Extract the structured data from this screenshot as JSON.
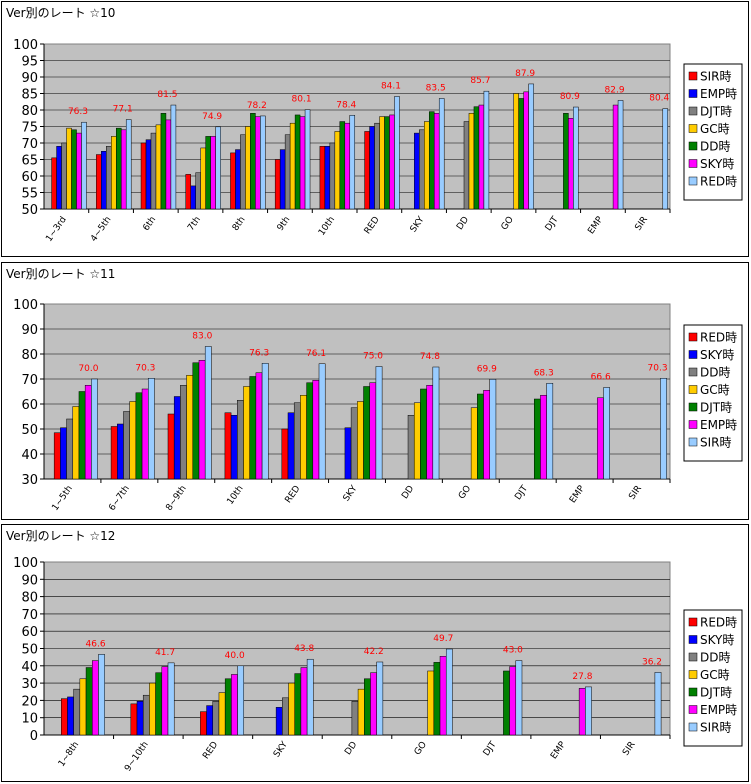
{
  "colors": {
    "plot_bg": "#c0c0c0",
    "label_red": "#ff0000",
    "RED時": "#ff0000",
    "SKY時": "#0000ff",
    "DD時": "#808080",
    "GC時": "#ffcc00",
    "DJT時": "#008000",
    "EMP時": "#ff00ff",
    "SIR時": "#99ccff"
  },
  "chart_data": [
    {
      "type": "bar",
      "title": "Ver別のレート ☆10",
      "ylim": [
        50,
        100
      ],
      "yticks": [
        50,
        55,
        60,
        65,
        70,
        75,
        80,
        85,
        90,
        95,
        100
      ],
      "grid": true,
      "legend_placement": "right",
      "categories": [
        "1~3rd",
        "4~5th",
        "6th",
        "7th",
        "8th",
        "9th",
        "10th",
        "RED",
        "SKY",
        "DD",
        "GO",
        "DJT",
        "EMP",
        "SIR"
      ],
      "series": [
        {
          "name": "SIR時",
          "color_key": "RED時",
          "values": [
            65.5,
            66.5,
            70,
            60.5,
            67,
            65,
            69,
            73.5,
            null,
            null,
            null,
            null,
            null,
            null
          ]
        },
        {
          "name": "EMP時",
          "color_key": "SKY時",
          "values": [
            69,
            67.5,
            71,
            57,
            68,
            68,
            69,
            75,
            73,
            null,
            null,
            null,
            null,
            null
          ]
        },
        {
          "name": "DJT時",
          "color_key": "DD時",
          "values": [
            70,
            69,
            73,
            61,
            72.5,
            72.5,
            70,
            76,
            74,
            76.5,
            null,
            null,
            null,
            null
          ]
        },
        {
          "name": "GC時",
          "color_key": "GC時",
          "values": [
            74.5,
            72,
            75.5,
            68.5,
            75,
            76,
            73.5,
            78,
            76.5,
            79,
            85,
            null,
            null,
            null
          ]
        },
        {
          "name": "DD時",
          "color_key": "DJT時",
          "values": [
            74,
            74.5,
            79,
            72,
            79,
            78.5,
            76.5,
            78,
            79.5,
            81,
            83.5,
            79,
            null,
            null
          ]
        },
        {
          "name": "SKY時",
          "color_key": "EMP時",
          "values": [
            73,
            74,
            77,
            72,
            78,
            78,
            76,
            78.5,
            79,
            81.5,
            85.5,
            77.5,
            81.5,
            null
          ]
        },
        {
          "name": "RED時",
          "color_key": "SIR時",
          "values": [
            76.3,
            77.1,
            81.5,
            74.9,
            78.2,
            80.1,
            78.4,
            84.1,
            83.5,
            85.7,
            87.9,
            80.9,
            82.9,
            80.4
          ]
        }
      ],
      "data_labels": [
        "76.3",
        "77.1",
        "81.5",
        "74.9",
        "78.2",
        "80.1",
        "78.4",
        "84.1",
        "83.5",
        "85.7",
        "87.9",
        "80.9",
        "82.9",
        "80.4"
      ]
    },
    {
      "type": "bar",
      "title": "Ver別のレート ☆11",
      "ylim": [
        30,
        100
      ],
      "yticks": [
        30,
        40,
        50,
        60,
        70,
        80,
        90,
        100
      ],
      "grid": true,
      "legend_placement": "right",
      "categories": [
        "1~5th",
        "6~7th",
        "8~9th",
        "10th",
        "RED",
        "SKY",
        "DD",
        "GO",
        "DJT",
        "EMP",
        "SIR"
      ],
      "series": [
        {
          "name": "RED時",
          "color_key": "RED時",
          "values": [
            48.5,
            51,
            56,
            56.5,
            50,
            null,
            null,
            null,
            null,
            null,
            null
          ]
        },
        {
          "name": "SKY時",
          "color_key": "SKY時",
          "values": [
            50.5,
            52,
            63,
            55.5,
            56.5,
            50.5,
            null,
            null,
            null,
            null,
            null
          ]
        },
        {
          "name": "DD時",
          "color_key": "DD時",
          "values": [
            54,
            57,
            67.5,
            61.5,
            60.5,
            58.5,
            55.5,
            null,
            null,
            null,
            null
          ]
        },
        {
          "name": "GC時",
          "color_key": "GC時",
          "values": [
            59,
            61,
            71.5,
            67,
            63.5,
            61,
            60.5,
            58.5,
            null,
            null,
            null
          ]
        },
        {
          "name": "DJT時",
          "color_key": "DJT時",
          "values": [
            65,
            64.5,
            76.5,
            71,
            68.5,
            67,
            66,
            64,
            62,
            null,
            null
          ]
        },
        {
          "name": "EMP時",
          "color_key": "EMP時",
          "values": [
            67.5,
            66,
            77.5,
            72.5,
            69.5,
            68.5,
            67.5,
            65.5,
            63.5,
            62.5,
            null
          ]
        },
        {
          "name": "SIR時",
          "color_key": "SIR時",
          "values": [
            70.0,
            70.3,
            83.0,
            76.3,
            76.1,
            75.0,
            74.8,
            69.9,
            68.3,
            66.6,
            70.3
          ]
        }
      ],
      "data_labels": [
        "70.0",
        "70.3",
        "83.0",
        "76.3",
        "76.1",
        "75.0",
        "74.8",
        "69.9",
        "68.3",
        "66.6",
        "70.3"
      ]
    },
    {
      "type": "bar",
      "title": "Ver別のレート ☆12",
      "ylim": [
        0,
        100
      ],
      "yticks": [
        0,
        10,
        20,
        30,
        40,
        50,
        60,
        70,
        80,
        90,
        100
      ],
      "grid": true,
      "legend_placement": "right",
      "categories": [
        "1~8th",
        "9~10th",
        "RED",
        "SKY",
        "DD",
        "GO",
        "DJT",
        "EMP",
        "SIR"
      ],
      "series": [
        {
          "name": "RED時",
          "color_key": "RED時",
          "values": [
            21,
            18,
            13.5,
            null,
            null,
            null,
            null,
            null,
            null
          ]
        },
        {
          "name": "SKY時",
          "color_key": "SKY時",
          "values": [
            22,
            19.5,
            17,
            16,
            null,
            null,
            null,
            null,
            null
          ]
        },
        {
          "name": "DD時",
          "color_key": "DD時",
          "values": [
            26.5,
            23,
            19.5,
            21.5,
            19.5,
            null,
            null,
            null,
            null
          ]
        },
        {
          "name": "GC時",
          "color_key": "GC時",
          "values": [
            32.5,
            30,
            24.5,
            30,
            26.5,
            37,
            null,
            null,
            null
          ]
        },
        {
          "name": "DJT時",
          "color_key": "DJT時",
          "values": [
            39,
            36,
            32.5,
            35.5,
            32.5,
            42,
            37,
            null,
            null
          ]
        },
        {
          "name": "EMP時",
          "color_key": "EMP時",
          "values": [
            43,
            39.5,
            35,
            39,
            36,
            45.5,
            39.5,
            27,
            null
          ]
        },
        {
          "name": "SIR時",
          "color_key": "SIR時",
          "values": [
            46.6,
            41.7,
            40.0,
            43.8,
            42.2,
            49.7,
            43.0,
            27.8,
            36.2
          ]
        }
      ],
      "data_labels": [
        "46.6",
        "41.7",
        "40.0",
        "43.8",
        "42.2",
        "49.7",
        "43.0",
        "27.8",
        "36.2"
      ]
    }
  ]
}
